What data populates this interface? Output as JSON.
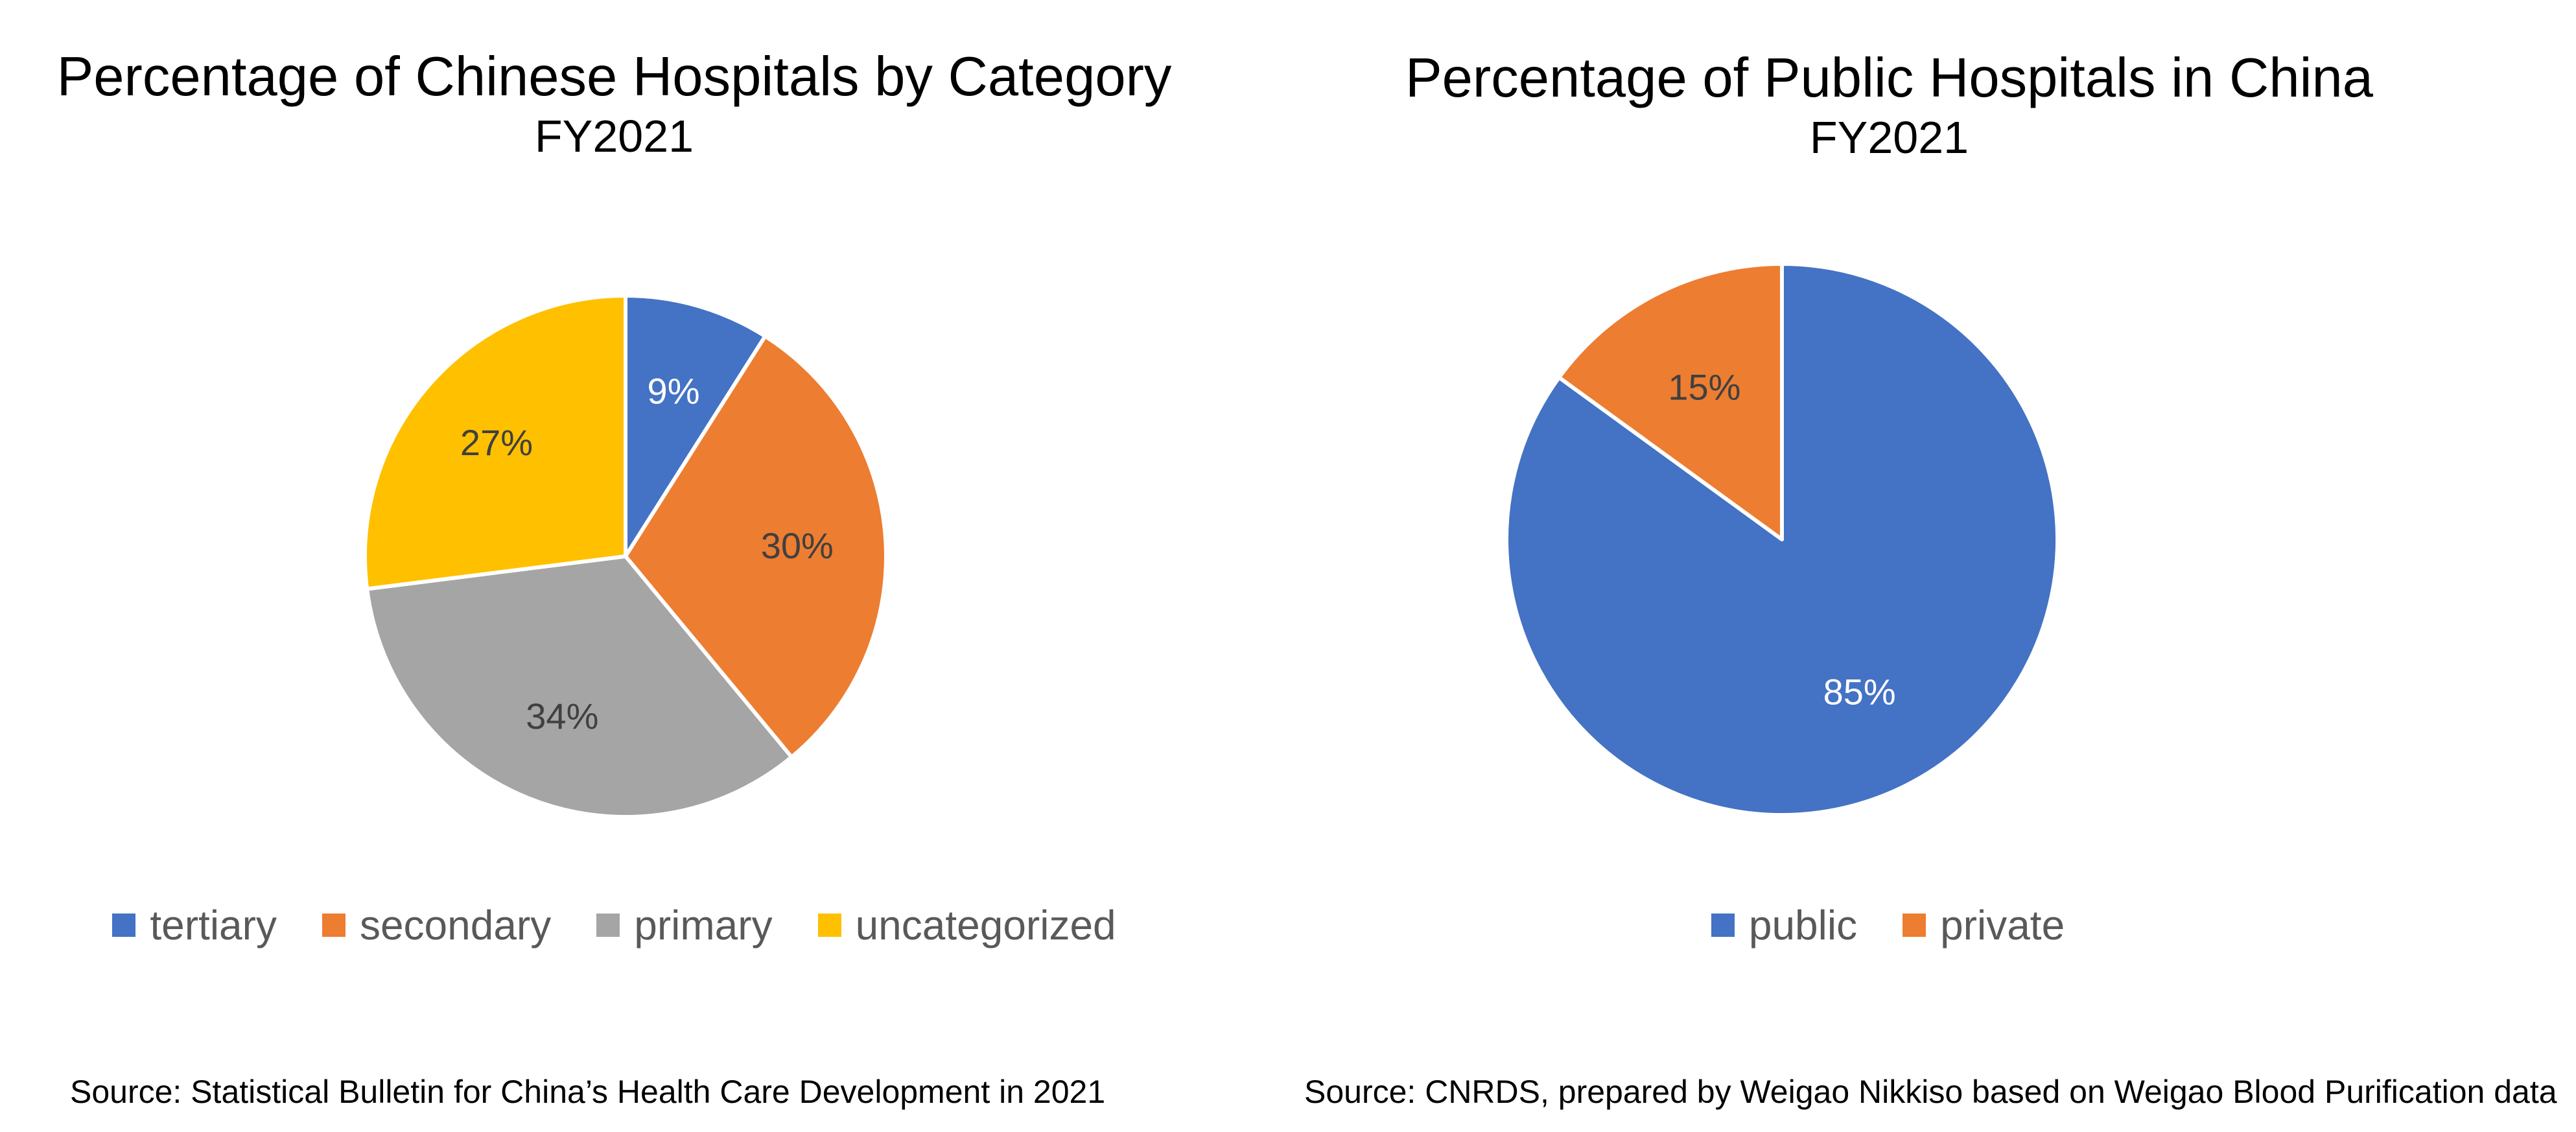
{
  "chart_data": [
    {
      "type": "pie",
      "title": "Percentage of Chinese Hospitals by Category",
      "subtitle": "FY2021",
      "source": "Source: Statistical Bulletin for China’s Health Care Development in 2021",
      "legend_position": "bottom",
      "categories": [
        "tertiary",
        "secondary",
        "primary",
        "uncategorized"
      ],
      "values": [
        9,
        30,
        34,
        27
      ],
      "labels": [
        "9%",
        "30%",
        "34%",
        "27%"
      ],
      "colors": [
        "#4472C4",
        "#ED7D31",
        "#A5A5A5",
        "#FFC000"
      ],
      "label_colors": [
        "#FFFFFF",
        "#404040",
        "#404040",
        "#404040"
      ]
    },
    {
      "type": "pie",
      "title": "Percentage of Public Hospitals in China",
      "subtitle": "FY2021",
      "source": "Source: CNRDS, prepared by Weigao Nikkiso based on Weigao Blood Purification data",
      "legend_position": "bottom",
      "categories": [
        "public",
        "private"
      ],
      "values": [
        85,
        15
      ],
      "labels": [
        "85%",
        "15%"
      ],
      "colors": [
        "#4472C4",
        "#ED7D31"
      ],
      "label_colors": [
        "#FFFFFF",
        "#404040"
      ]
    }
  ]
}
